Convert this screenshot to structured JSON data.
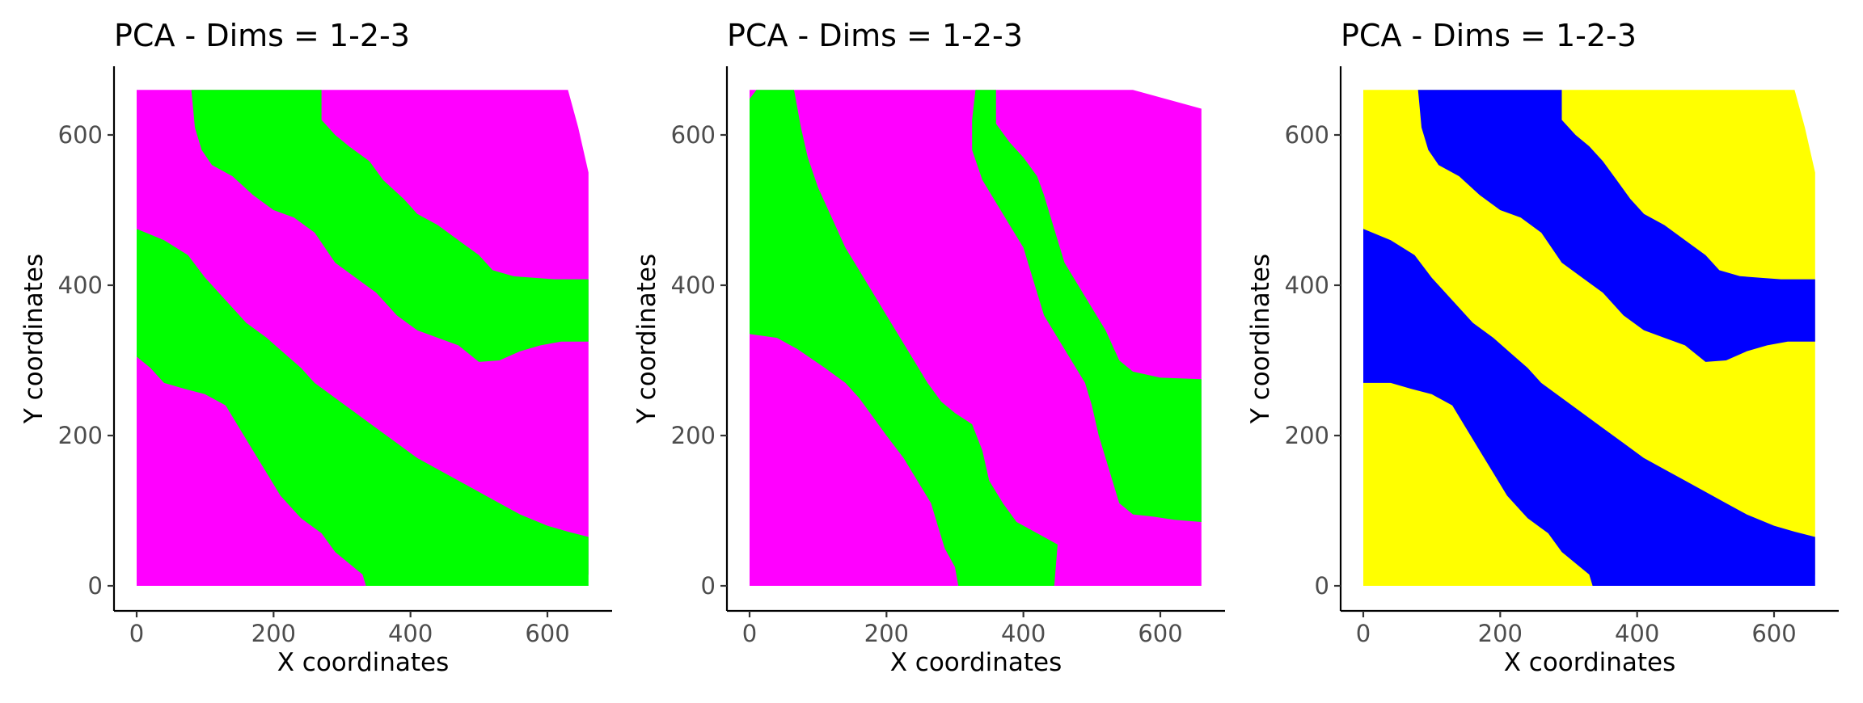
{
  "chart_data": [
    {
      "type": "area",
      "title": "PCA - Dims = 1-2-3",
      "xlabel": "X coordinates",
      "ylabel": "Y coordinates",
      "xlim": [
        -25,
        695
      ],
      "ylim": [
        -35,
        690
      ],
      "x_ticks": [
        "0",
        "200",
        "400",
        "600"
      ],
      "y_ticks": [
        "0",
        "200",
        "400",
        "600"
      ],
      "x_tick_values": [
        0,
        200,
        400,
        600
      ],
      "y_tick_values": [
        0,
        200,
        400,
        600
      ],
      "grid": false,
      "background_color": "#ff00ff",
      "band_color": "#00ff00",
      "outline": [
        [
          0,
          0
        ],
        [
          645,
          0
        ],
        [
          660,
          15
        ],
        [
          660,
          550
        ],
        [
          645,
          610
        ],
        [
          630,
          660
        ],
        [
          0,
          660
        ]
      ],
      "bands": [
        [
          [
            0,
            475
          ],
          [
            40,
            460
          ],
          [
            75,
            440
          ],
          [
            100,
            410
          ],
          [
            130,
            380
          ],
          [
            160,
            350
          ],
          [
            190,
            330
          ],
          [
            215,
            310
          ],
          [
            240,
            290
          ],
          [
            260,
            270
          ],
          [
            290,
            250
          ],
          [
            320,
            230
          ],
          [
            350,
            210
          ],
          [
            380,
            190
          ],
          [
            410,
            170
          ],
          [
            440,
            155
          ],
          [
            470,
            140
          ],
          [
            500,
            125
          ],
          [
            530,
            110
          ],
          [
            560,
            95
          ],
          [
            600,
            80
          ],
          [
            630,
            72
          ],
          [
            660,
            65
          ],
          [
            660,
            0
          ],
          [
            335,
            0
          ],
          [
            330,
            15
          ],
          [
            310,
            30
          ],
          [
            290,
            45
          ],
          [
            270,
            70
          ],
          [
            240,
            90
          ],
          [
            210,
            120
          ],
          [
            190,
            150
          ],
          [
            170,
            180
          ],
          [
            150,
            210
          ],
          [
            130,
            240
          ],
          [
            100,
            255
          ],
          [
            70,
            262
          ],
          [
            40,
            270
          ],
          [
            20,
            290
          ],
          [
            0,
            305
          ]
        ],
        [
          [
            80,
            660
          ],
          [
            270,
            660
          ],
          [
            270,
            620
          ],
          [
            290,
            600
          ],
          [
            310,
            585
          ],
          [
            340,
            565
          ],
          [
            360,
            540
          ],
          [
            390,
            515
          ],
          [
            410,
            495
          ],
          [
            440,
            480
          ],
          [
            470,
            460
          ],
          [
            500,
            440
          ],
          [
            520,
            420
          ],
          [
            550,
            412
          ],
          [
            580,
            410
          ],
          [
            610,
            408
          ],
          [
            660,
            408
          ],
          [
            660,
            325
          ],
          [
            620,
            325
          ],
          [
            590,
            320
          ],
          [
            560,
            312
          ],
          [
            530,
            300
          ],
          [
            500,
            298
          ],
          [
            470,
            320
          ],
          [
            440,
            330
          ],
          [
            410,
            340
          ],
          [
            380,
            360
          ],
          [
            350,
            390
          ],
          [
            320,
            410
          ],
          [
            290,
            430
          ],
          [
            260,
            470
          ],
          [
            230,
            490
          ],
          [
            200,
            500
          ],
          [
            170,
            520
          ],
          [
            140,
            545
          ],
          [
            110,
            560
          ],
          [
            95,
            580
          ],
          [
            85,
            610
          ]
        ]
      ]
    },
    {
      "type": "area",
      "title": "PCA - Dims = 1-2-3",
      "xlabel": "X coordinates",
      "ylabel": "Y coordinates",
      "xlim": [
        -25,
        695
      ],
      "ylim": [
        -35,
        690
      ],
      "x_ticks": [
        "0",
        "200",
        "400",
        "600"
      ],
      "y_ticks": [
        "0",
        "200",
        "400",
        "600"
      ],
      "x_tick_values": [
        0,
        200,
        400,
        600
      ],
      "y_tick_values": [
        0,
        200,
        400,
        600
      ],
      "grid": false,
      "background_color": "#ff00ff",
      "band_color": "#00ff00",
      "outline": [
        [
          0,
          0
        ],
        [
          660,
          0
        ],
        [
          660,
          635
        ],
        [
          560,
          660
        ],
        [
          0,
          660
        ]
      ],
      "bands": [
        [
          [
            10,
            660
          ],
          [
            65,
            660
          ],
          [
            75,
            610
          ],
          [
            85,
            570
          ],
          [
            100,
            530
          ],
          [
            120,
            490
          ],
          [
            140,
            450
          ],
          [
            160,
            420
          ],
          [
            180,
            390
          ],
          [
            200,
            360
          ],
          [
            220,
            330
          ],
          [
            240,
            300
          ],
          [
            260,
            270
          ],
          [
            280,
            245
          ],
          [
            300,
            230
          ],
          [
            325,
            215
          ],
          [
            340,
            180
          ],
          [
            350,
            140
          ],
          [
            370,
            110
          ],
          [
            390,
            85
          ],
          [
            420,
            70
          ],
          [
            450,
            55
          ],
          [
            445,
            0
          ],
          [
            305,
            0
          ],
          [
            300,
            25
          ],
          [
            285,
            50
          ],
          [
            275,
            80
          ],
          [
            265,
            110
          ],
          [
            245,
            140
          ],
          [
            225,
            170
          ],
          [
            200,
            200
          ],
          [
            180,
            225
          ],
          [
            160,
            250
          ],
          [
            140,
            270
          ],
          [
            110,
            290
          ],
          [
            70,
            315
          ],
          [
            40,
            330
          ],
          [
            0,
            335
          ],
          [
            0,
            648
          ]
        ],
        [
          [
            330,
            660
          ],
          [
            360,
            660
          ],
          [
            360,
            615
          ],
          [
            380,
            590
          ],
          [
            400,
            570
          ],
          [
            420,
            545
          ],
          [
            430,
            520
          ],
          [
            440,
            490
          ],
          [
            450,
            460
          ],
          [
            460,
            430
          ],
          [
            480,
            400
          ],
          [
            500,
            370
          ],
          [
            520,
            340
          ],
          [
            540,
            300
          ],
          [
            560,
            285
          ],
          [
            600,
            277
          ],
          [
            660,
            275
          ],
          [
            660,
            85
          ],
          [
            620,
            88
          ],
          [
            590,
            92
          ],
          [
            560,
            95
          ],
          [
            540,
            110
          ],
          [
            530,
            140
          ],
          [
            520,
            170
          ],
          [
            510,
            200
          ],
          [
            500,
            240
          ],
          [
            490,
            270
          ],
          [
            470,
            300
          ],
          [
            450,
            330
          ],
          [
            430,
            360
          ],
          [
            420,
            390
          ],
          [
            410,
            420
          ],
          [
            400,
            450
          ],
          [
            380,
            480
          ],
          [
            360,
            510
          ],
          [
            340,
            540
          ],
          [
            325,
            580
          ],
          [
            325,
            620
          ]
        ]
      ]
    },
    {
      "type": "area",
      "title": "PCA - Dims = 1-2-3",
      "xlabel": "X coordinates",
      "ylabel": "Y coordinates",
      "xlim": [
        -25,
        695
      ],
      "ylim": [
        -35,
        690
      ],
      "x_ticks": [
        "0",
        "200",
        "400",
        "600"
      ],
      "y_ticks": [
        "0",
        "200",
        "400",
        "600"
      ],
      "x_tick_values": [
        0,
        200,
        400,
        600
      ],
      "y_tick_values": [
        0,
        200,
        400,
        600
      ],
      "grid": false,
      "background_color": "#ffff00",
      "band_color": "#0000ff",
      "outline": [
        [
          0,
          0
        ],
        [
          645,
          0
        ],
        [
          660,
          15
        ],
        [
          660,
          550
        ],
        [
          645,
          610
        ],
        [
          630,
          660
        ],
        [
          0,
          660
        ]
      ],
      "bands": [
        [
          [
            0,
            475
          ],
          [
            40,
            460
          ],
          [
            75,
            440
          ],
          [
            100,
            410
          ],
          [
            130,
            380
          ],
          [
            160,
            350
          ],
          [
            190,
            330
          ],
          [
            215,
            310
          ],
          [
            240,
            290
          ],
          [
            260,
            270
          ],
          [
            290,
            250
          ],
          [
            320,
            230
          ],
          [
            350,
            210
          ],
          [
            380,
            190
          ],
          [
            410,
            170
          ],
          [
            440,
            155
          ],
          [
            470,
            140
          ],
          [
            500,
            125
          ],
          [
            530,
            110
          ],
          [
            560,
            95
          ],
          [
            600,
            80
          ],
          [
            630,
            72
          ],
          [
            660,
            65
          ],
          [
            660,
            0
          ],
          [
            335,
            0
          ],
          [
            330,
            15
          ],
          [
            310,
            30
          ],
          [
            290,
            45
          ],
          [
            270,
            70
          ],
          [
            240,
            90
          ],
          [
            210,
            120
          ],
          [
            190,
            150
          ],
          [
            170,
            180
          ],
          [
            150,
            210
          ],
          [
            130,
            240
          ],
          [
            100,
            255
          ],
          [
            70,
            262
          ],
          [
            40,
            270
          ],
          [
            20,
            270
          ],
          [
            0,
            270
          ]
        ],
        [
          [
            80,
            660
          ],
          [
            290,
            660
          ],
          [
            290,
            620
          ],
          [
            310,
            600
          ],
          [
            330,
            585
          ],
          [
            350,
            565
          ],
          [
            370,
            540
          ],
          [
            390,
            515
          ],
          [
            410,
            495
          ],
          [
            440,
            480
          ],
          [
            470,
            460
          ],
          [
            500,
            440
          ],
          [
            520,
            420
          ],
          [
            550,
            412
          ],
          [
            580,
            410
          ],
          [
            610,
            408
          ],
          [
            660,
            408
          ],
          [
            660,
            325
          ],
          [
            620,
            325
          ],
          [
            590,
            320
          ],
          [
            560,
            312
          ],
          [
            530,
            300
          ],
          [
            500,
            298
          ],
          [
            470,
            320
          ],
          [
            440,
            330
          ],
          [
            410,
            340
          ],
          [
            380,
            360
          ],
          [
            350,
            390
          ],
          [
            320,
            410
          ],
          [
            290,
            430
          ],
          [
            260,
            470
          ],
          [
            230,
            490
          ],
          [
            200,
            500
          ],
          [
            170,
            520
          ],
          [
            140,
            545
          ],
          [
            110,
            560
          ],
          [
            95,
            580
          ],
          [
            85,
            610
          ]
        ]
      ]
    }
  ]
}
